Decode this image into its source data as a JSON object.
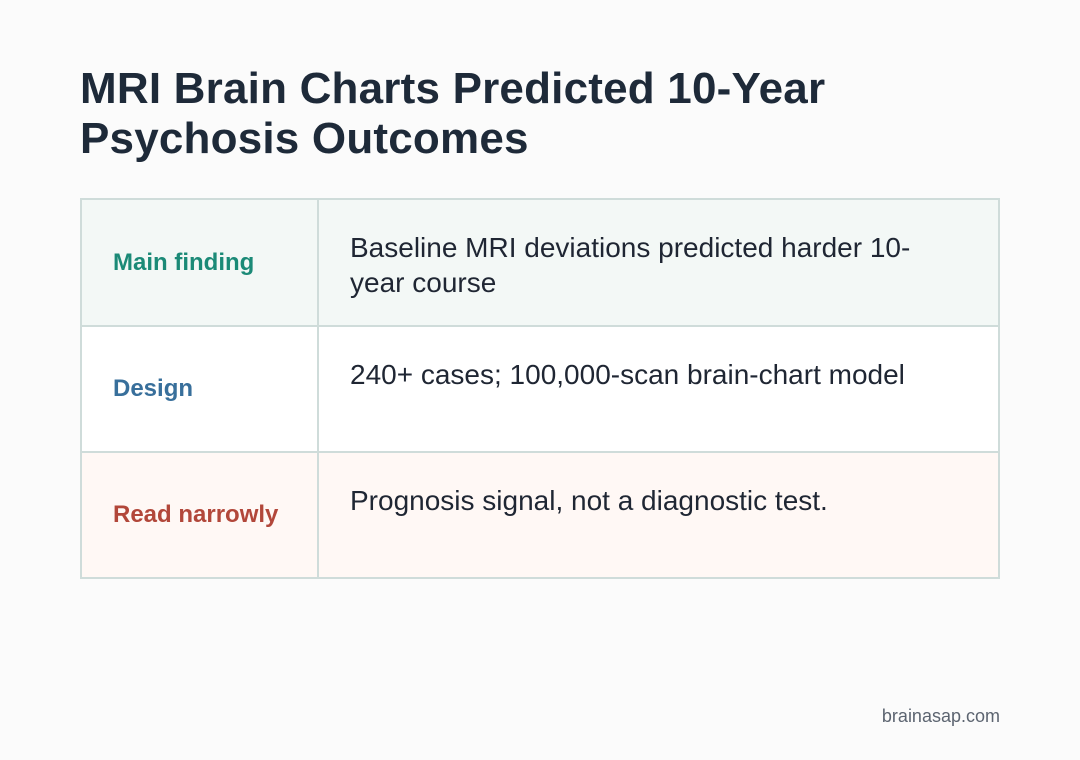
{
  "title": "MRI Brain Charts Predicted 10-Year Psychosis Outcomes",
  "rows": [
    {
      "label": "Main finding",
      "value": "Baseline MRI deviations predicted harder 10-year course"
    },
    {
      "label": "Design",
      "value": "240+ cases; 100,000-scan brain-chart model"
    },
    {
      "label": "Read narrowly",
      "value": "Prognosis signal, not a diagnostic test."
    }
  ],
  "footer": "brainasap.com"
}
